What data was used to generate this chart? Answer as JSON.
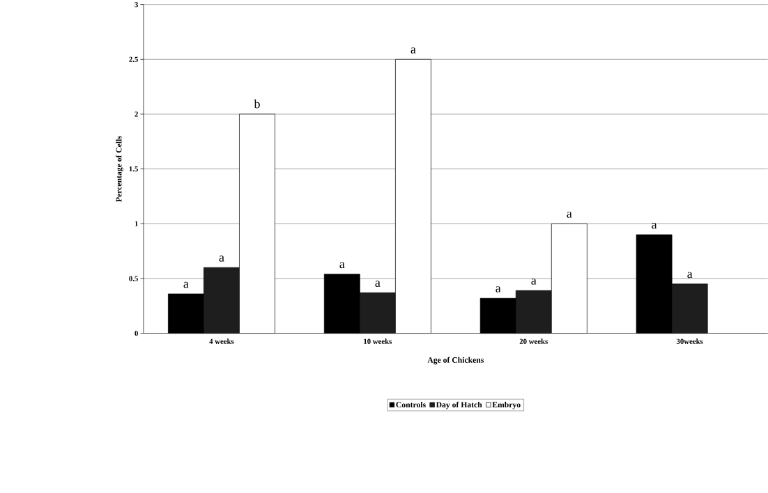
{
  "chart_data": {
    "type": "bar",
    "xlabel": "Age of Chickens",
    "ylabel": "Percentage of Cells",
    "categories": [
      "4 weeks",
      "10 weeks",
      "20 weeks",
      "30weeks"
    ],
    "series": [
      {
        "name": "Controls",
        "color": "#000000",
        "values": [
          0.36,
          0.54,
          0.32,
          0.9
        ],
        "value_labels": [
          "a",
          "a",
          "a",
          "a"
        ]
      },
      {
        "name": "Day of Hatch",
        "color": "#1e1e1e",
        "values": [
          0.6,
          0.37,
          0.39,
          0.45
        ],
        "value_labels": [
          "a",
          "a",
          "a",
          "a"
        ]
      },
      {
        "name": "Embryo",
        "color": "#ffffff",
        "values": [
          2.0,
          2.5,
          1.0,
          null
        ],
        "value_labels": [
          "b",
          "a",
          "a",
          null
        ]
      }
    ],
    "ylim": [
      0,
      3
    ],
    "yticks": [
      0,
      0.5,
      1,
      1.5,
      2,
      2.5,
      3
    ],
    "grid": "y",
    "legend": "bottom"
  }
}
